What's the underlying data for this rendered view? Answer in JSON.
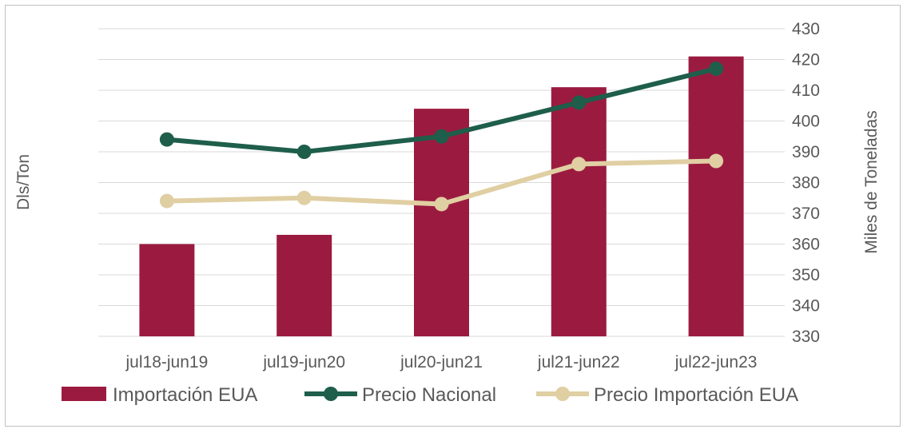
{
  "chart_data": {
    "type": "bar+line",
    "categories": [
      "jul18-jun19",
      "jul19-jun20",
      "jul20-jun21",
      "jul21-jun22",
      "jul22-jun23"
    ],
    "bar_series": {
      "name": "Importación EUA",
      "axis": "right",
      "values": [
        360,
        363,
        404,
        411,
        421
      ],
      "color": "#9b1b40"
    },
    "line_series": [
      {
        "name": "Precio Nacional",
        "values": [
          394,
          390,
          395,
          406,
          417
        ],
        "color": "#1e5e4a"
      },
      {
        "name": "Precio Importación EUA",
        "values": [
          374,
          375,
          373,
          386,
          387
        ],
        "color": "#e0cfa3"
      }
    ],
    "left_axis": {
      "label": "Dls/Ton"
    },
    "right_axis": {
      "label": "Miles de Toneladas",
      "range": [
        330,
        430
      ],
      "ticks": [
        "430",
        "420",
        "410",
        "400",
        "390",
        "380",
        "370",
        "360",
        "350",
        "340",
        "330"
      ]
    },
    "grid": true,
    "legend_position": "bottom"
  }
}
